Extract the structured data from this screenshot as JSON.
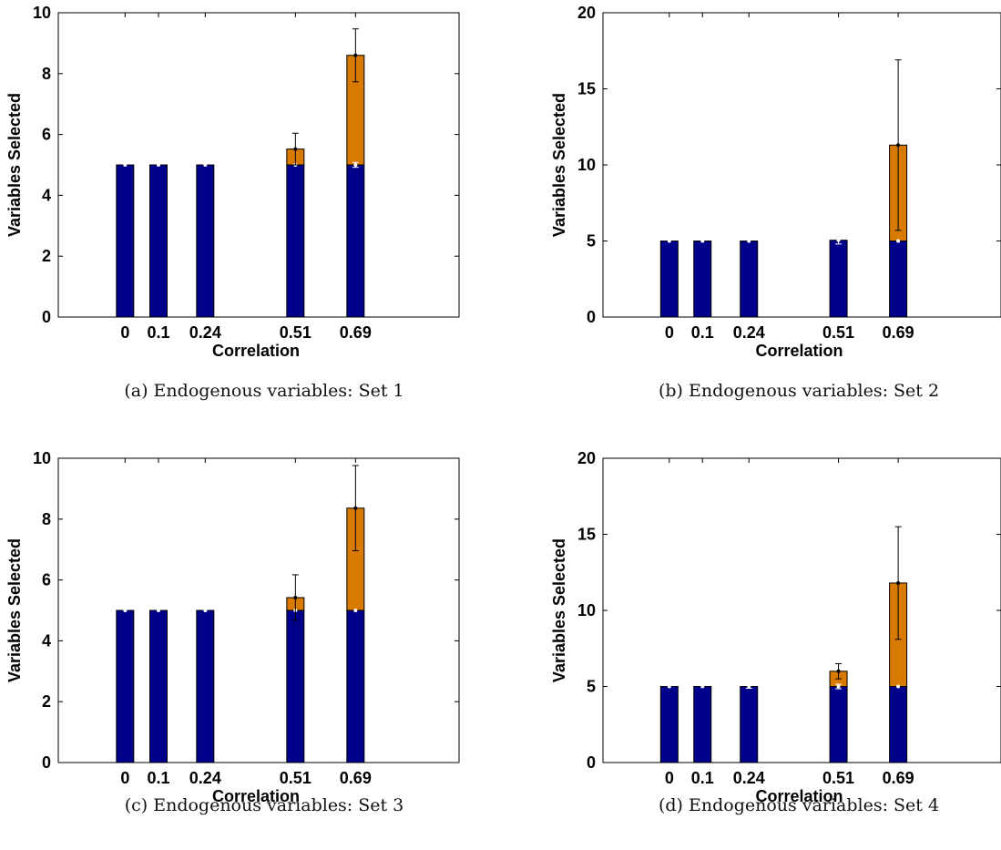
{
  "chart_data": [
    {
      "type": "bar",
      "stacked": true,
      "caption": "(a) Endogenous variables: Set 1",
      "xlabel": "Correlation",
      "ylabel": "Variables Selected",
      "categories": [
        "0",
        "0.1",
        "0.24",
        "0.51",
        "0.69"
      ],
      "x_positions": [
        0,
        0.1,
        0.24,
        0.51,
        0.69
      ],
      "xlim": [
        -0.2,
        1.0
      ],
      "ylim": [
        0,
        10
      ],
      "yticks": [
        0,
        2,
        4,
        6,
        8,
        10
      ],
      "grid": false,
      "series": [
        {
          "values": [
            5,
            5,
            5,
            5,
            5
          ],
          "color": "#00008b",
          "error": [
            0,
            0,
            0,
            0,
            0.08
          ]
        },
        {
          "values": [
            0,
            0,
            0,
            0.52,
            3.6
          ],
          "color": "#d97a00",
          "error": [
            0,
            0,
            0,
            0.52,
            0.87
          ]
        }
      ]
    },
    {
      "type": "bar",
      "stacked": true,
      "caption": "(b) Endogenous variables: Set 2",
      "xlabel": "Correlation",
      "ylabel": "Variables Selected",
      "categories": [
        "0",
        "0.1",
        "0.24",
        "0.51",
        "0.69"
      ],
      "x_positions": [
        0,
        0.1,
        0.24,
        0.51,
        0.69
      ],
      "xlim": [
        -0.2,
        1.0
      ],
      "ylim": [
        0,
        20
      ],
      "yticks": [
        0,
        5,
        10,
        15,
        20
      ],
      "grid": false,
      "series": [
        {
          "values": [
            5,
            5,
            5,
            5.05,
            5
          ],
          "color": "#00008b",
          "error": [
            0,
            0,
            0,
            0.25,
            0
          ]
        },
        {
          "values": [
            0,
            0,
            0,
            0,
            6.3
          ],
          "color": "#d97a00",
          "error": [
            0,
            0,
            0,
            0,
            5.6
          ]
        }
      ]
    },
    {
      "type": "bar",
      "stacked": true,
      "caption": "(c) Endogenous variables: Set 3",
      "xlabel": "Correlation",
      "ylabel": "Variables Selected",
      "categories": [
        "0",
        "0.1",
        "0.24",
        "0.51",
        "0.69"
      ],
      "x_positions": [
        0,
        0.1,
        0.24,
        0.51,
        0.69
      ],
      "xlim": [
        -0.2,
        1.0
      ],
      "ylim": [
        0,
        10
      ],
      "yticks": [
        0,
        2,
        4,
        6,
        8,
        10
      ],
      "grid": false,
      "series": [
        {
          "values": [
            5,
            5,
            5,
            5,
            5
          ],
          "color": "#00008b",
          "error": [
            0,
            0,
            0,
            0,
            0
          ]
        },
        {
          "values": [
            0,
            0,
            0,
            0.42,
            3.36
          ],
          "color": "#d97a00",
          "error": [
            0,
            0,
            0,
            0.75,
            1.4
          ]
        }
      ]
    },
    {
      "type": "bar",
      "stacked": true,
      "caption": "(d) Endogenous variables: Set 4",
      "xlabel": "Correlation",
      "ylabel": "Variables Selected",
      "categories": [
        "0",
        "0.1",
        "0.24",
        "0.51",
        "0.69"
      ],
      "x_positions": [
        0,
        0.1,
        0.24,
        0.51,
        0.69
      ],
      "xlim": [
        -0.2,
        1.0
      ],
      "ylim": [
        0,
        20
      ],
      "yticks": [
        0,
        5,
        10,
        15,
        20
      ],
      "grid": false,
      "series": [
        {
          "values": [
            5,
            5,
            5,
            5,
            5
          ],
          "color": "#00008b",
          "error": [
            0,
            0,
            0.12,
            0.15,
            0
          ]
        },
        {
          "values": [
            0,
            0,
            0,
            1,
            6.8
          ],
          "color": "#d97a00",
          "error": [
            0,
            0,
            0,
            0.5,
            3.7
          ]
        }
      ]
    }
  ]
}
